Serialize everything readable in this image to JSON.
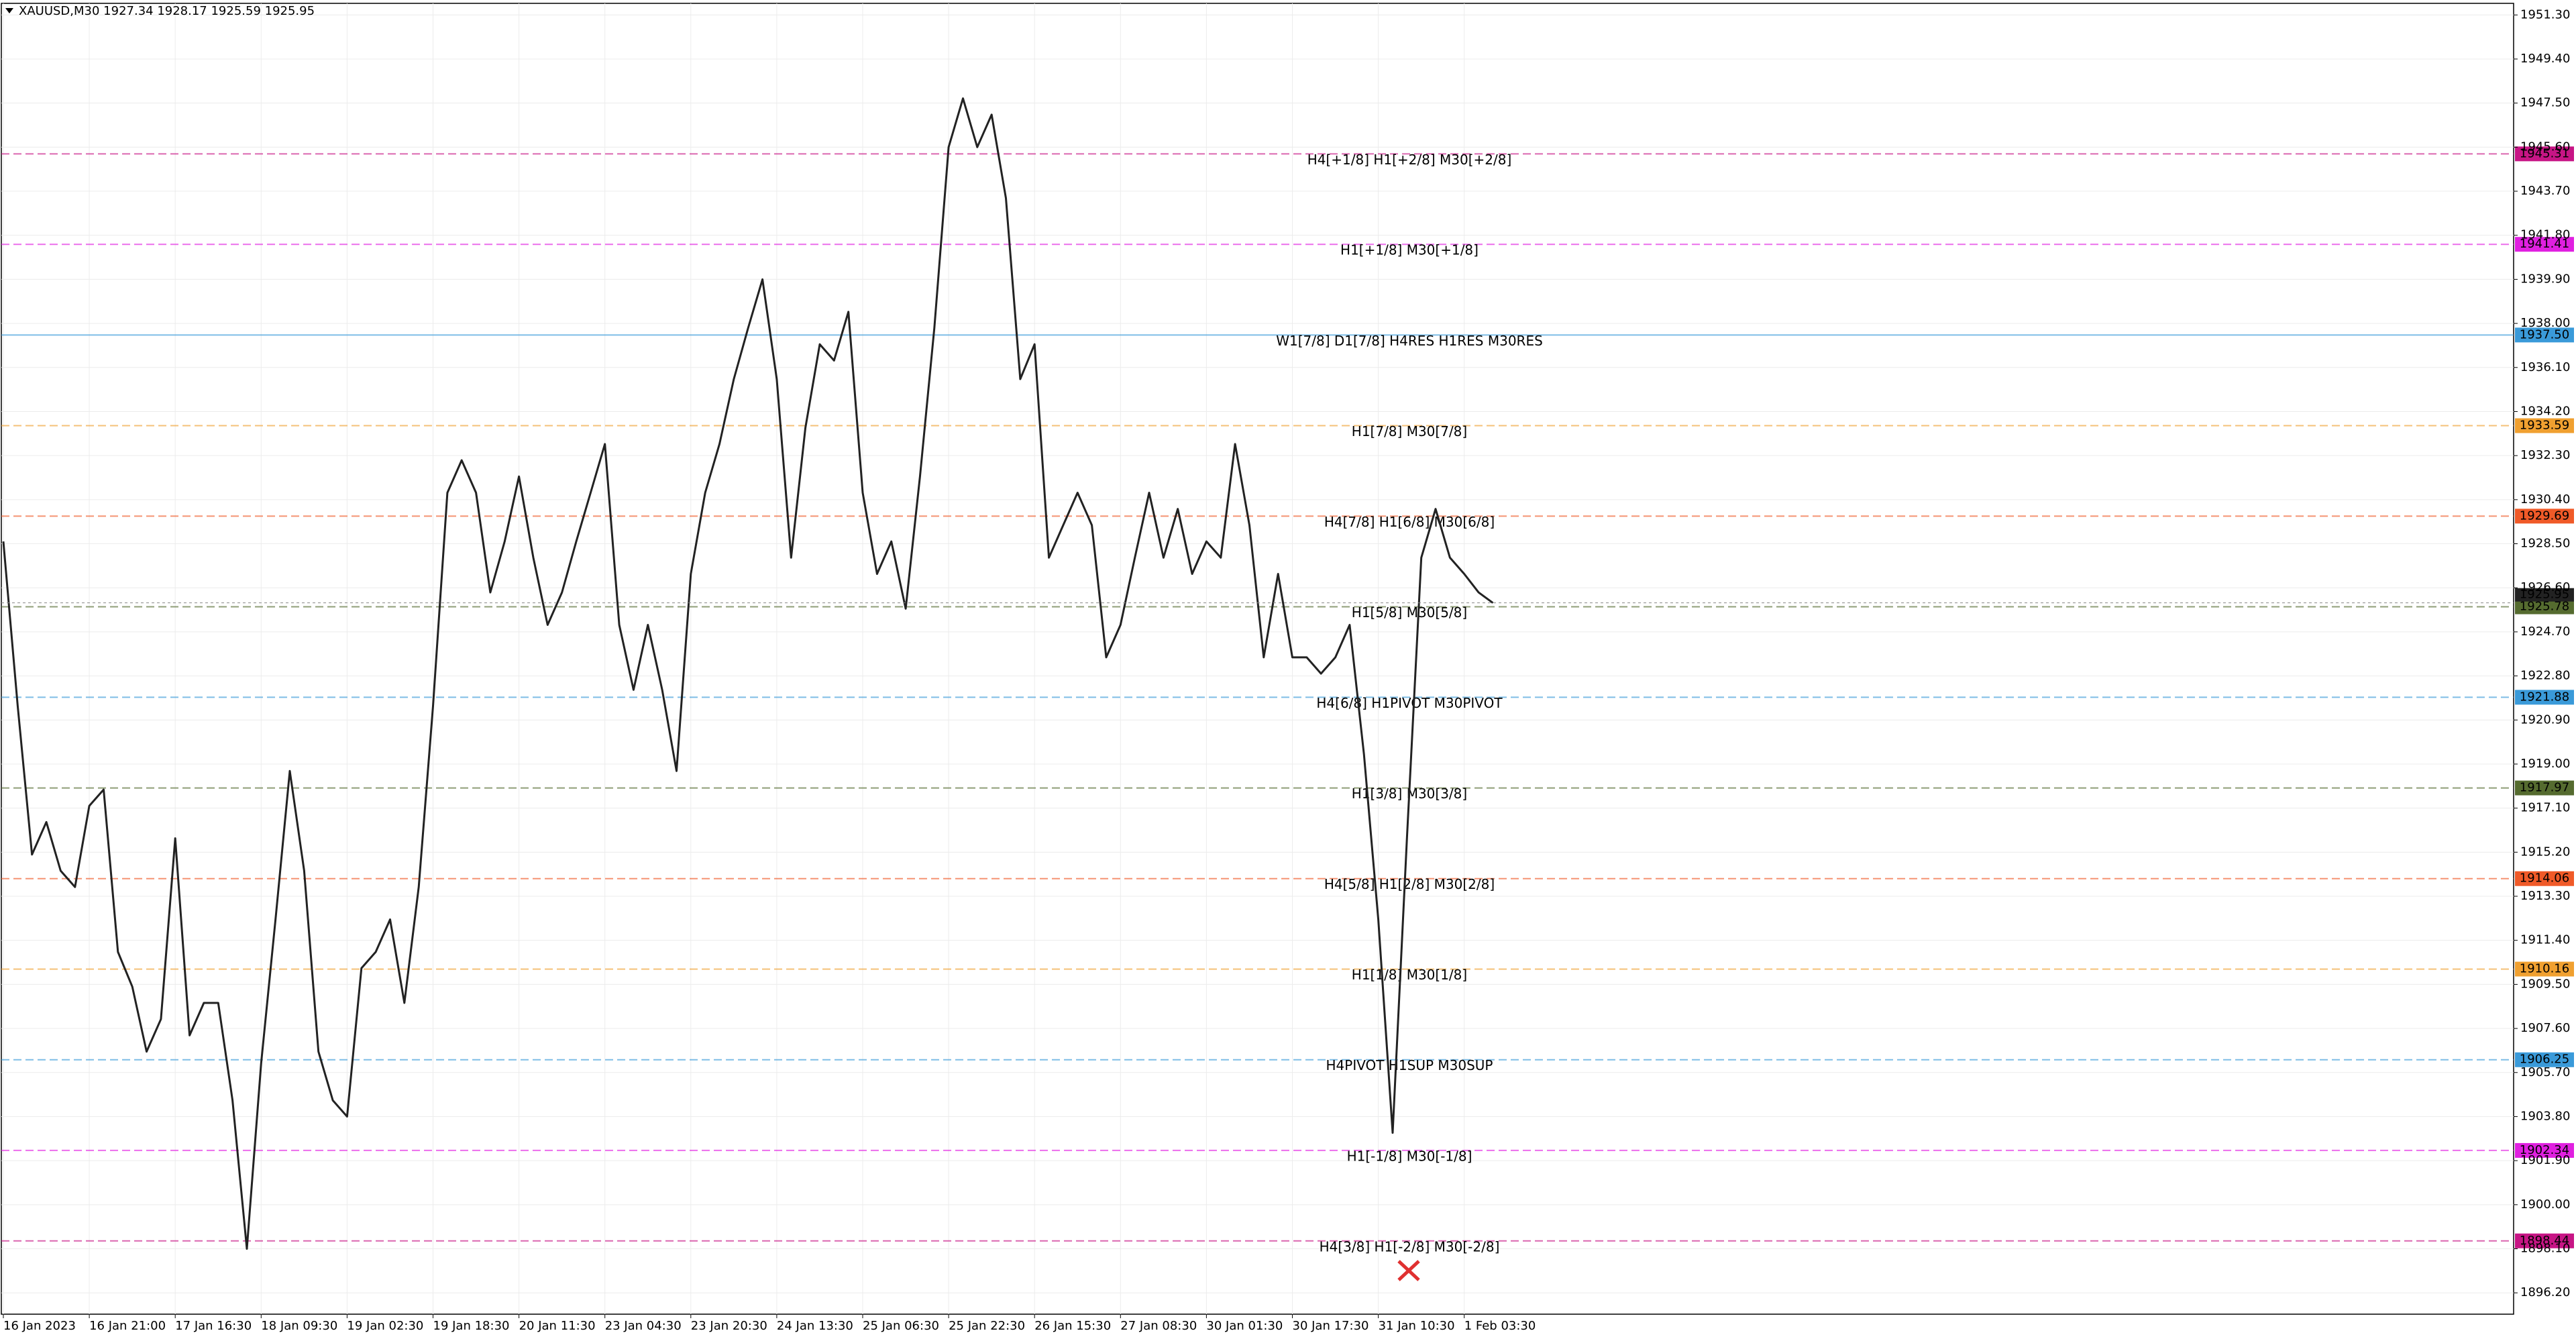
{
  "chart_data": {
    "type": "line",
    "title": "XAUUSD,M30  1927.34 1928.17 1925.59 1925.95",
    "color": "#222222",
    "grid": true,
    "ylim": [
      1895.28,
      1951.8
    ],
    "yticks": [
      {
        "value": 1951.3,
        "label": "1951.30"
      },
      {
        "value": 1949.4,
        "label": "1949.40"
      },
      {
        "value": 1947.5,
        "label": "1947.50"
      },
      {
        "value": 1945.6,
        "label": "1945.60"
      },
      {
        "value": 1943.7,
        "label": "1943.70"
      },
      {
        "value": 1941.8,
        "label": "1941.80"
      },
      {
        "value": 1939.9,
        "label": "1939.90"
      },
      {
        "value": 1938.0,
        "label": "1938.00"
      },
      {
        "value": 1936.1,
        "label": "1936.10"
      },
      {
        "value": 1934.2,
        "label": "1934.20"
      },
      {
        "value": 1932.3,
        "label": "1932.30"
      },
      {
        "value": 1930.4,
        "label": "1930.40"
      },
      {
        "value": 1928.5,
        "label": "1928.50"
      },
      {
        "value": 1926.6,
        "label": "1926.60"
      },
      {
        "value": 1924.7,
        "label": "1924.70"
      },
      {
        "value": 1922.8,
        "label": "1922.80"
      },
      {
        "value": 1920.9,
        "label": "1920.90"
      },
      {
        "value": 1919.0,
        "label": "1919.00"
      },
      {
        "value": 1917.1,
        "label": "1917.10"
      },
      {
        "value": 1915.2,
        "label": "1915.20"
      },
      {
        "value": 1913.3,
        "label": "1913.30"
      },
      {
        "value": 1911.4,
        "label": "1911.40"
      },
      {
        "value": 1909.5,
        "label": "1909.50"
      },
      {
        "value": 1907.6,
        "label": "1907.60"
      },
      {
        "value": 1905.7,
        "label": "1905.70"
      },
      {
        "value": 1903.8,
        "label": "1903.80"
      },
      {
        "value": 1901.9,
        "label": "1901.90"
      },
      {
        "value": 1900.0,
        "label": "1900.00"
      },
      {
        "value": 1898.1,
        "label": "1898.10"
      },
      {
        "value": 1896.2,
        "label": "1896.20"
      }
    ],
    "categories": [
      "16 Jan 2023",
      null,
      null,
      null,
      null,
      null,
      "16 Jan 21:00",
      null,
      null,
      null,
      null,
      null,
      "17 Jan 16:30",
      null,
      null,
      null,
      null,
      null,
      "18 Jan 09:30",
      null,
      null,
      null,
      null,
      null,
      "19 Jan 02:30",
      null,
      null,
      null,
      null,
      null,
      "19 Jan 18:30",
      null,
      null,
      null,
      null,
      null,
      "20 Jan 11:30",
      null,
      null,
      null,
      null,
      null,
      "23 Jan 04:30",
      null,
      null,
      null,
      null,
      null,
      "23 Jan 20:30",
      null,
      null,
      null,
      null,
      null,
      "24 Jan 13:30",
      null,
      null,
      null,
      null,
      null,
      "25 Jan 06:30",
      null,
      null,
      null,
      null,
      null,
      "25 Jan 22:30",
      null,
      null,
      null,
      null,
      null,
      "26 Jan 15:30",
      null,
      null,
      null,
      null,
      null,
      "27 Jan 08:30",
      null,
      null,
      null,
      null,
      null,
      "30 Jan 01:30",
      null,
      null,
      null,
      null,
      null,
      "30 Jan 17:30",
      null,
      null,
      null,
      null,
      null,
      "31 Jan 10:30",
      null,
      null,
      null,
      null,
      null,
      "1 Feb 03:30",
      null,
      null
    ],
    "values": [
      1928.6,
      1921.5,
      1915.1,
      1916.5,
      1914.4,
      1913.7,
      1917.2,
      1917.9,
      1910.9,
      1909.4,
      1906.6,
      1908.0,
      1915.8,
      1907.3,
      1908.7,
      1908.7,
      1904.5,
      1898.1,
      1906.1,
      1912.3,
      1918.7,
      1914.4,
      1906.6,
      1904.5,
      1903.8,
      1910.2,
      1910.9,
      1912.3,
      1908.7,
      1913.7,
      1921.5,
      1930.7,
      1932.1,
      1930.7,
      1926.4,
      1928.6,
      1931.4,
      1927.9,
      1925.0,
      1926.4,
      1928.6,
      1930.7,
      1932.8,
      1925.0,
      1922.2,
      1925.0,
      1922.2,
      1918.7,
      1927.2,
      1930.7,
      1932.8,
      1935.6,
      1937.8,
      1939.9,
      1935.6,
      1927.9,
      1933.5,
      1937.1,
      1936.4,
      1938.5,
      1930.7,
      1927.2,
      1928.6,
      1925.7,
      1931.4,
      1937.8,
      1945.6,
      1947.7,
      1945.6,
      1947.0,
      1943.4,
      1935.6,
      1937.1,
      1927.9,
      1929.3,
      1930.7,
      1929.3,
      1923.6,
      1925.0,
      1927.9,
      1930.7,
      1927.9,
      1930.0,
      1927.2,
      1928.6,
      1927.9,
      1932.8,
      1929.3,
      1923.6,
      1927.2,
      1923.6,
      1923.6,
      1922.9,
      1923.6,
      1925.0,
      1919.4,
      1912.3,
      1903.1,
      1915.8,
      1927.9,
      1930.0,
      1927.9,
      1927.2,
      1926.4,
      1925.95
    ],
    "last_price": 1925.95,
    "levels": [
      {
        "price": 1945.31,
        "price_label": "1945.31",
        "text": "H4[+1/8] H1[+2/8] M30[+2/8]",
        "color": "#c71585",
        "style": "dashed"
      },
      {
        "price": 1941.41,
        "price_label": "1941.41",
        "text": "H1[+1/8] M30[+1/8]",
        "color": "#e020e0",
        "style": "dashed"
      },
      {
        "price": 1937.5,
        "price_label": "1937.50",
        "text": "W1[7/8] D1[7/8] H4RES H1RES M30RES",
        "color": "#3a9ad9",
        "style": "solid"
      },
      {
        "price": 1933.59,
        "price_label": "1933.59",
        "text": "H1[7/8] M30[7/8]",
        "color": "#f0a030",
        "style": "dashed"
      },
      {
        "price": 1929.69,
        "price_label": "1929.69",
        "text": "H4[7/8] H1[6/8] M30[6/8]",
        "color": "#f05a28",
        "style": "dashed"
      },
      {
        "price": 1925.78,
        "price_label": "1925.78",
        "text": "H1[5/8] M30[5/8]",
        "color": "#556b2f",
        "style": "dashed"
      },
      {
        "price": 1921.88,
        "price_label": "1921.88",
        "text": "H4[6/8] H1PIVOT M30PIVOT",
        "color": "#3a9ad9",
        "style": "dashed"
      },
      {
        "price": 1917.97,
        "price_label": "1917.97",
        "text": "H1[3/8] M30[3/8]",
        "color": "#556b2f",
        "style": "dashed"
      },
      {
        "price": 1914.06,
        "price_label": "1914.06",
        "text": "H4[5/8] H1[2/8] M30[2/8]",
        "color": "#f05a28",
        "style": "dashed"
      },
      {
        "price": 1910.16,
        "price_label": "1910.16",
        "text": "H1[1/8] M30[1/8]",
        "color": "#f0a030",
        "style": "dashed"
      },
      {
        "price": 1906.25,
        "price_label": "1906.25",
        "text": "H4PIVOT H1SUP M30SUP",
        "color": "#3a9ad9",
        "style": "dashed"
      },
      {
        "price": 1902.34,
        "price_label": "1902.34",
        "text": "H1[-1/8] M30[-1/8]",
        "color": "#e020e0",
        "style": "dashed"
      },
      {
        "price": 1898.44,
        "price_label": "1898.44",
        "text": "H4[3/8] H1[-2/8] M30[-2/8]",
        "color": "#c71585",
        "style": "dashed"
      }
    ]
  }
}
